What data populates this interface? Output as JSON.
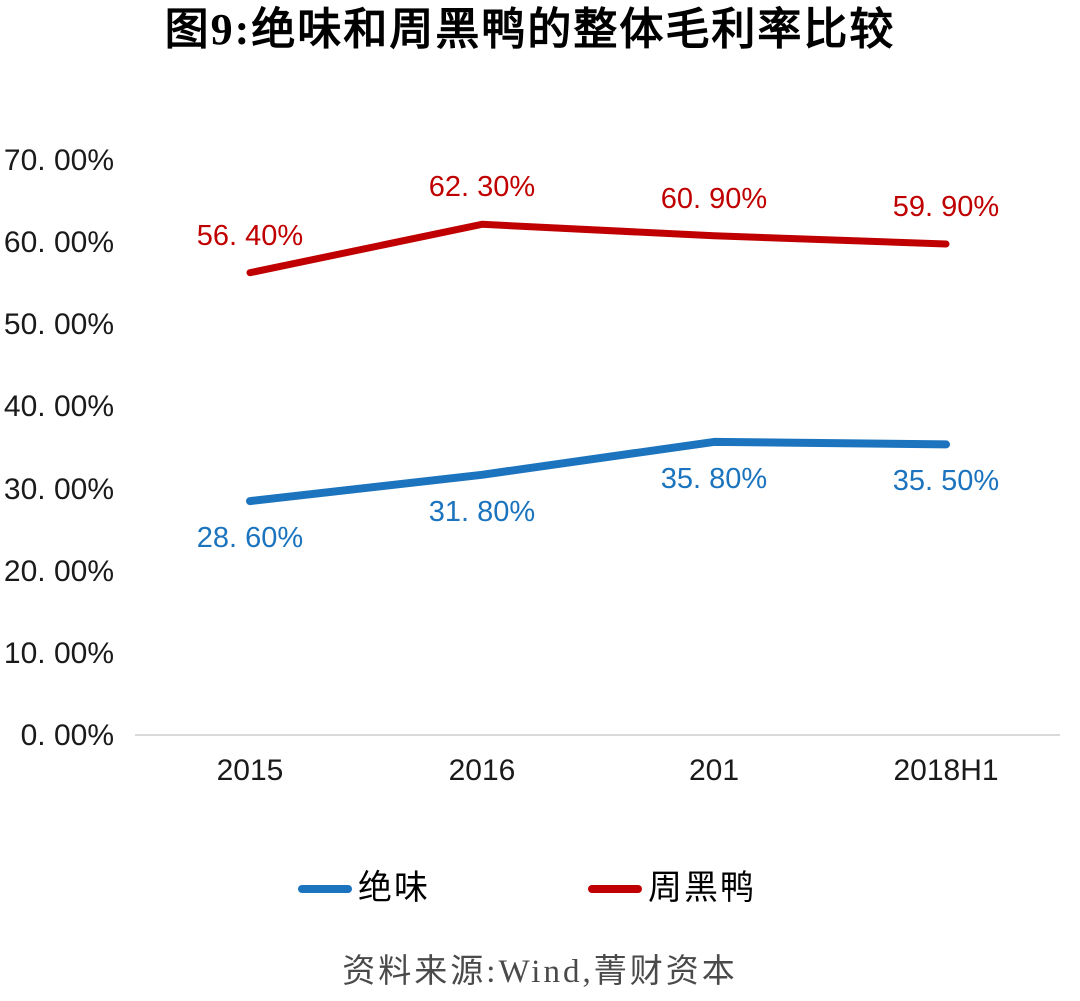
{
  "header": {
    "title": "图9:绝味和周黑鸭的整体毛利率比较"
  },
  "footer": {
    "source": "资料来源:Wind,菁财资本"
  },
  "legend": {
    "items": [
      {
        "id": "juewei",
        "label": "绝味",
        "color": "#1b74bd"
      },
      {
        "id": "zhouheiya",
        "label": "周黑鸭",
        "color": "#c00000"
      }
    ]
  },
  "colors": {
    "juewei_blue": "#1b74bd",
    "zhouheiya_red": "#c00000",
    "axis_line": "#d9d9d9",
    "tick_text": "#1a1a1a",
    "source_text": "#4a4a4a"
  },
  "chart_data": {
    "type": "line",
    "title": "图9:绝味和周黑鸭的整体毛利率比较",
    "categories": [
      "2015",
      "2016",
      "201",
      "2018H1"
    ],
    "series": [
      {
        "id": "juewei",
        "name": "绝味",
        "values": [
          28.6,
          31.8,
          35.8,
          35.5
        ],
        "point_labels": [
          "28. 60%",
          "31. 80%",
          "35. 80%",
          "35. 50%"
        ],
        "color": "#1b74bd",
        "stroke_width": 8,
        "label_position": "below"
      },
      {
        "id": "zhouheiya",
        "name": "周黑鸭",
        "values": [
          56.4,
          62.3,
          60.9,
          59.9
        ],
        "point_labels": [
          "56. 40%",
          "62. 30%",
          "60. 90%",
          "59. 90%"
        ],
        "color": "#c00000",
        "stroke_width": 7,
        "label_position": "above"
      }
    ],
    "xlabel": "",
    "ylabel": "",
    "ylim": [
      0,
      70
    ],
    "y_tick_step": 10,
    "y_tick_labels": [
      "70. 00%",
      "60. 00%",
      "50. 00%",
      "40. 00%",
      "30. 00%",
      "20. 00%",
      "10. 00%",
      "0. 00%"
    ],
    "grid": false,
    "legend_position": "bottom"
  }
}
